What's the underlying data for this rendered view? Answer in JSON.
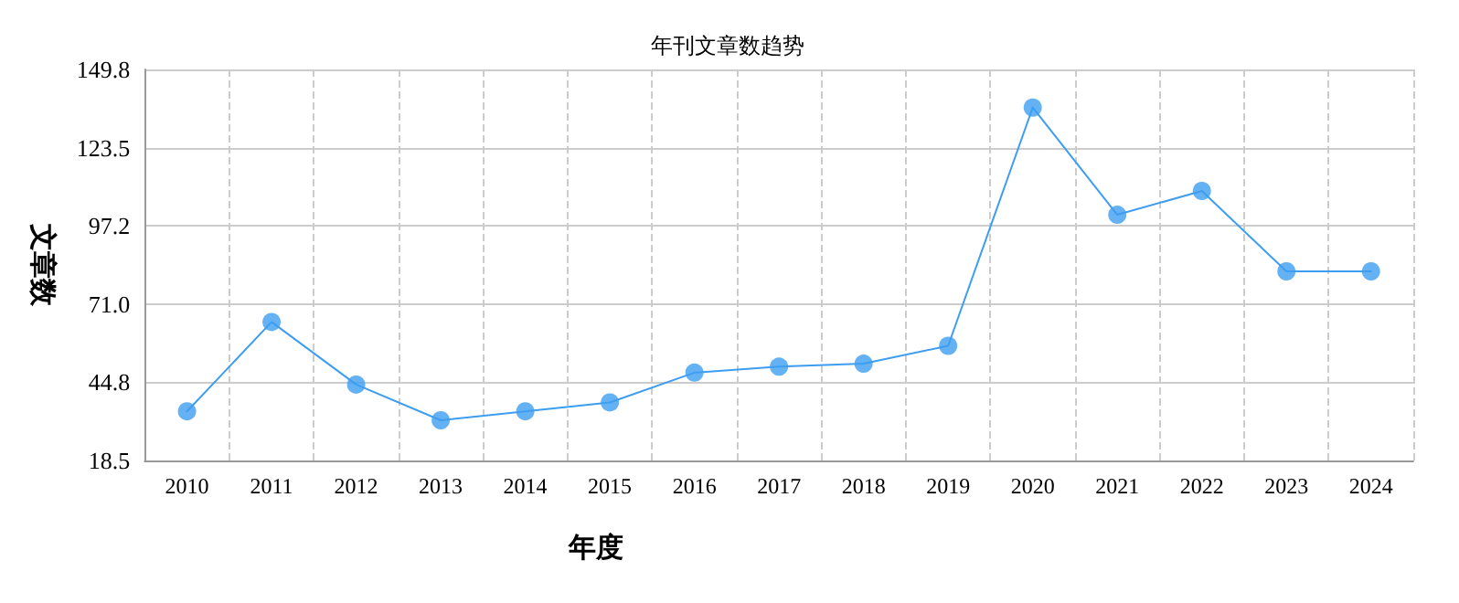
{
  "chart_data": {
    "type": "line",
    "title": "年刊文章数趋势",
    "xlabel": "年度",
    "ylabel": "文章数",
    "categories": [
      "2010",
      "2011",
      "2012",
      "2013",
      "2014",
      "2015",
      "2016",
      "2017",
      "2018",
      "2019",
      "2020",
      "2021",
      "2022",
      "2023",
      "2024"
    ],
    "series": [
      {
        "color": "#3d9df0",
        "values": [
          35,
          65,
          44,
          32,
          35,
          38,
          48,
          50,
          51,
          57,
          137,
          101,
          109,
          82,
          82
        ]
      }
    ],
    "ylim": [
      18.5,
      149.8
    ],
    "yticks": [
      18.5,
      44.8,
      {
        "value": 71,
        "label": "71.0"
      },
      97.2,
      123.5,
      149.8
    ],
    "grid": true,
    "marker": "circle",
    "line_style": "solid"
  }
}
